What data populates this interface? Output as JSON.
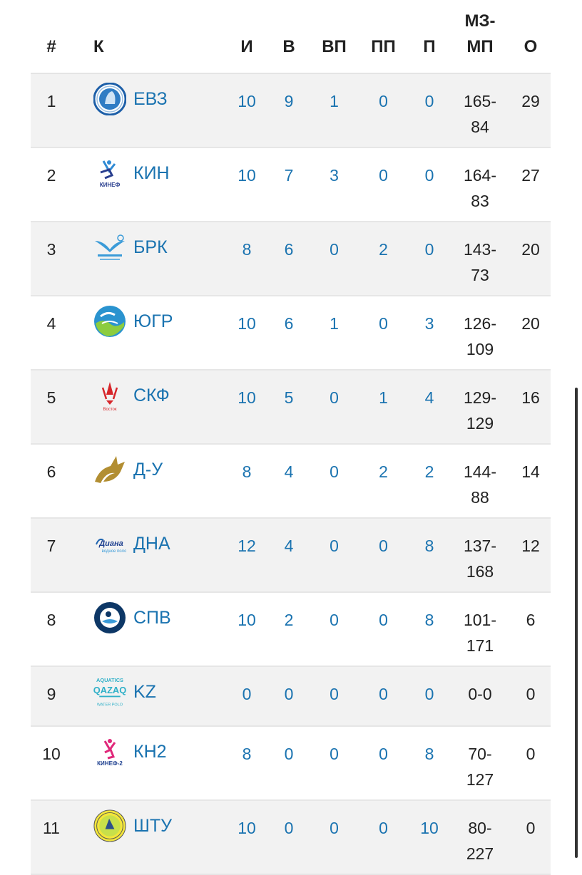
{
  "headers": {
    "pos": "#",
    "team": "К",
    "games": "И",
    "wins": "В",
    "ot_wins": "ВП",
    "ot_losses": "ПП",
    "losses": "П",
    "goals": "МЗ-МП",
    "points": "О"
  },
  "rows": [
    {
      "pos": "1",
      "team": "ЕВЗ",
      "logo": "evz-logo",
      "games": "10",
      "wins": "9",
      "ot_wins": "1",
      "ot_losses": "0",
      "losses": "0",
      "goals": "165-84",
      "points": "29"
    },
    {
      "pos": "2",
      "team": "КИН",
      "logo": "kinef-logo",
      "games": "10",
      "wins": "7",
      "ot_wins": "3",
      "ot_losses": "0",
      "losses": "0",
      "goals": "164-83",
      "points": "27"
    },
    {
      "pos": "3",
      "team": "БРК",
      "logo": "burevestnik-logo",
      "games": "8",
      "wins": "6",
      "ot_wins": "0",
      "ot_losses": "2",
      "losses": "0",
      "goals": "143-73",
      "points": "20"
    },
    {
      "pos": "4",
      "team": "ЮГР",
      "logo": "yugra-logo",
      "games": "10",
      "wins": "6",
      "ot_wins": "1",
      "ot_losses": "0",
      "losses": "3",
      "goals": "126-109",
      "points": "20"
    },
    {
      "pos": "5",
      "team": "СКФ",
      "logo": "skf-logo",
      "games": "10",
      "wins": "5",
      "ot_wins": "0",
      "ot_losses": "1",
      "losses": "4",
      "goals": "129-129",
      "points": "16"
    },
    {
      "pos": "6",
      "team": "Д-У",
      "logo": "dynamo-ufa-logo",
      "games": "8",
      "wins": "4",
      "ot_wins": "0",
      "ot_losses": "2",
      "losses": "2",
      "goals": "144-88",
      "points": "14"
    },
    {
      "pos": "7",
      "team": "ДНА",
      "logo": "diana-logo",
      "games": "12",
      "wins": "4",
      "ot_wins": "0",
      "ot_losses": "0",
      "losses": "8",
      "goals": "137-168",
      "points": "12"
    },
    {
      "pos": "8",
      "team": "СПВ",
      "logo": "spv-logo",
      "games": "10",
      "wins": "2",
      "ot_wins": "0",
      "ot_losses": "0",
      "losses": "8",
      "goals": "101-171",
      "points": "6"
    },
    {
      "pos": "9",
      "team": "KZ",
      "logo": "qazaq-aquatics-logo",
      "logo_text": [
        "AQUATICS",
        "QAZAQ",
        "WATER POLO"
      ],
      "games": "0",
      "wins": "0",
      "ot_wins": "0",
      "ot_losses": "0",
      "losses": "0",
      "goals": "0-0",
      "points": "0"
    },
    {
      "pos": "10",
      "team": "КН2",
      "logo": "kinef2-logo",
      "logo_text": [
        "КИНЕФ-2"
      ],
      "games": "8",
      "wins": "0",
      "ot_wins": "0",
      "ot_losses": "0",
      "losses": "8",
      "goals": "70-127",
      "points": "0"
    },
    {
      "pos": "11",
      "team": "ШТУ",
      "logo": "shturm-logo",
      "games": "10",
      "wins": "0",
      "ot_wins": "0",
      "ot_losses": "0",
      "losses": "10",
      "goals": "80-227",
      "points": "0"
    }
  ],
  "colors": {
    "link": "#1a73b0",
    "text": "#222222",
    "stripe": "#f2f2f2"
  }
}
